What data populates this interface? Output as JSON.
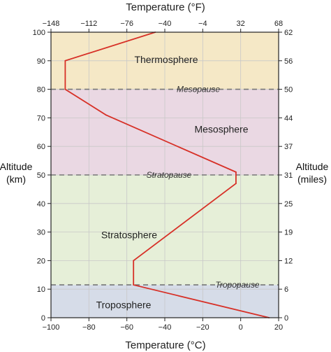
{
  "chart_data": {
    "type": "line",
    "title": "",
    "xlabel": "Temperature (°C)",
    "x2label": "Temperature (°F)",
    "ylabel_left": [
      "Altitude",
      "(km)"
    ],
    "ylabel_right": [
      "Altitude",
      "(miles)"
    ],
    "xlim": [
      -100,
      20
    ],
    "ylim": [
      0,
      100
    ],
    "x_ticks": [
      -100,
      -80,
      -60,
      -40,
      -20,
      0,
      20
    ],
    "x_tick_labels": [
      "−100",
      "−80",
      "−60",
      "−40",
      "−20",
      "0",
      "20"
    ],
    "x2_ticks": [
      -148,
      -112,
      -76,
      -40,
      -4,
      32,
      68
    ],
    "x2_tick_labels": [
      "−148",
      "−112",
      "−76",
      "−40",
      "−4",
      "32",
      "68"
    ],
    "y_ticks": [
      0,
      10,
      20,
      30,
      40,
      50,
      60,
      70,
      80,
      90,
      100
    ],
    "y_tick_labels": [
      "0",
      "10",
      "20",
      "30",
      "40",
      "50",
      "60",
      "70",
      "80",
      "90",
      "100"
    ],
    "y2_tick_labels": [
      {
        "km": 0,
        "label": "0"
      },
      {
        "km": 10,
        "label": "6"
      },
      {
        "km": 20,
        "label": "12"
      },
      {
        "km": 30,
        "label": "19"
      },
      {
        "km": 40,
        "label": "25"
      },
      {
        "km": 50,
        "label": "31"
      },
      {
        "km": 60,
        "label": "37"
      },
      {
        "km": 70,
        "label": "44"
      },
      {
        "km": 80,
        "label": "50"
      },
      {
        "km": 90,
        "label": "56"
      },
      {
        "km": 100,
        "label": "62"
      }
    ],
    "grid": true,
    "series": [
      {
        "color": "#d73027",
        "points": [
          [
            15,
            0
          ],
          [
            -56.5,
            11.5
          ],
          [
            -56.5,
            20
          ],
          [
            -2.5,
            47
          ],
          [
            -2.5,
            51
          ],
          [
            -71,
            71
          ],
          [
            -92.5,
            80
          ],
          [
            -92.5,
            90
          ],
          [
            -45,
            100
          ]
        ]
      }
    ],
    "layers": [
      {
        "name": "Troposphere",
        "from": 0,
        "to": 11.5,
        "color": "#d6dce8"
      },
      {
        "name": "Stratosphere",
        "from": 11.5,
        "to": 50,
        "color": "#e6efd8"
      },
      {
        "name": "Mesosphere",
        "from": 50,
        "to": 80,
        "color": "#ead8e3"
      },
      {
        "name": "Thermosphere",
        "from": 80,
        "to": 100,
        "color": "#f5e8c6"
      }
    ],
    "boundaries": [
      {
        "name": "Tropopause",
        "alt": 11.5
      },
      {
        "name": "Stratopause",
        "alt": 50
      },
      {
        "name": "Mesopause",
        "alt": 80
      }
    ]
  },
  "colors": {
    "line": "#d73027",
    "grid": "#c8c8c8",
    "boundary": "#777777",
    "frame": "#222222"
  }
}
